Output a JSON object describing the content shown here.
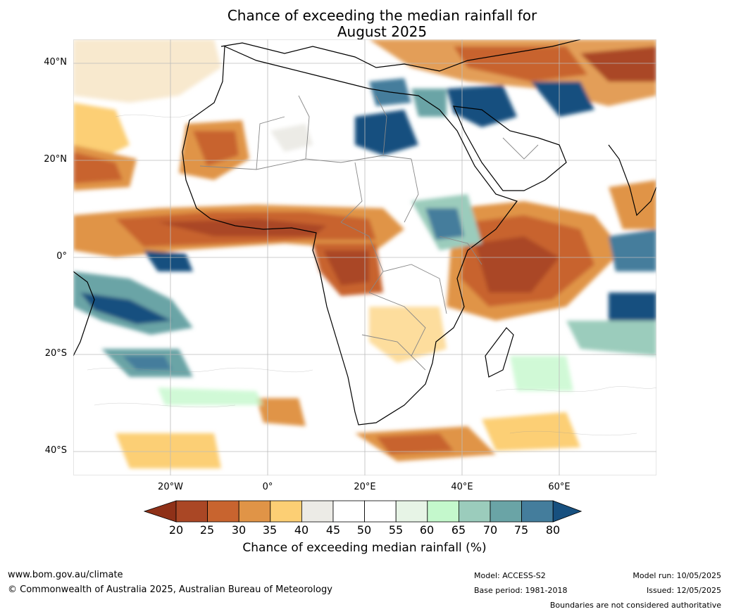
{
  "title_line1": "Chance of exceeding the median rainfall for",
  "title_line2": "August 2025",
  "lat_labels": [
    "40°N",
    "20°N",
    "0°",
    "20°S",
    "40°S"
  ],
  "lon_labels": [
    "20°W",
    "0°",
    "20°E",
    "40°E",
    "60°E"
  ],
  "colorbar": {
    "ticks": [
      "20",
      "25",
      "30",
      "35",
      "40",
      "45",
      "50",
      "55",
      "60",
      "65",
      "70",
      "75",
      "80"
    ],
    "colors": [
      "#8f3118",
      "#aa4725",
      "#c8642f",
      "#e09447",
      "#fccf74",
      "#ecebe6",
      "#ffffff",
      "#ffffff",
      "#e7f4e6",
      "#c4f8cc",
      "#9bccbc",
      "#6aa4a6",
      "#447d9c",
      "#17507f"
    ],
    "label": "Chance of exceeding median rainfall (%)"
  },
  "footer": {
    "url": "www.bom.gov.au/climate",
    "copyright": "© Commonwealth of Australia 2025, Australian Bureau of Meteorology",
    "model": "Model: ACCESS-S2",
    "base_period": "Base period: 1981-2018",
    "model_run": "Model run: 10/05/2025",
    "issued": "Issued: 12/05/2025",
    "boundaries": "Boundaries are not considered authoritative"
  }
}
